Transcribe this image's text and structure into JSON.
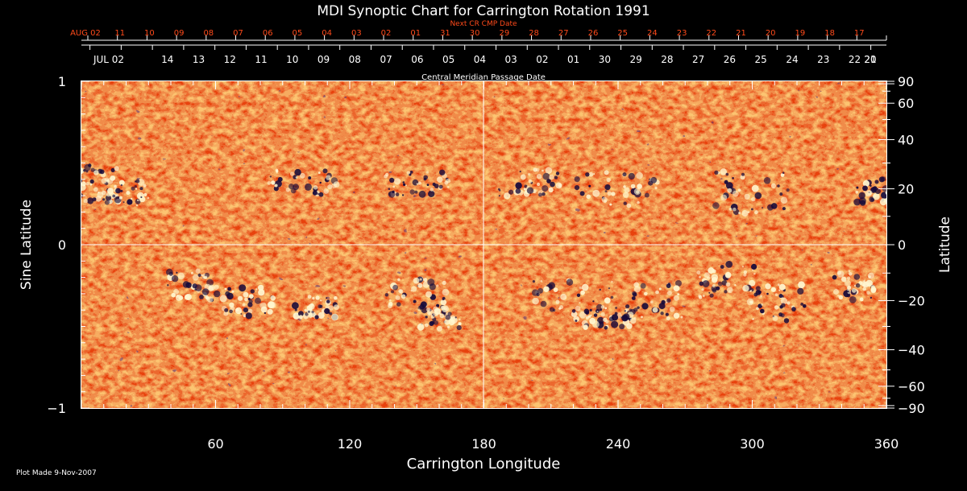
{
  "chart_data": {
    "type": "heatmap",
    "title": "MDI Synoptic Chart for Carrington Rotation 1991",
    "xlabel": "Carrington Longitude",
    "ylabel_left": "Sine Latitude",
    "ylabel_right": "Latitude",
    "xlim": [
      0,
      360
    ],
    "ylim": [
      -1,
      1
    ],
    "x_ticks": [
      "60",
      "120",
      "180",
      "240",
      "300",
      "360"
    ],
    "y_left_ticks": [
      "1",
      "0",
      "−1"
    ],
    "y_right_ticks": [
      "90",
      "60",
      "40",
      "20",
      "0",
      "−20",
      "−40",
      "−60",
      "−90"
    ],
    "next_cr_axis": {
      "label": "Next CR CMP Date",
      "ticks": [
        "AUG 02",
        "11",
        "10",
        "09",
        "08",
        "07",
        "06",
        "05",
        "04",
        "03",
        "02",
        "01",
        "31",
        "30",
        "29",
        "28",
        "27",
        "26",
        "25",
        "24",
        "23",
        "22",
        "21",
        "20",
        "19",
        "18",
        "17"
      ]
    },
    "cmp_axis": {
      "label": "Central Meridian Passage Date",
      "ticks": [
        "JUL 02",
        "14",
        "13",
        "12",
        "11",
        "10",
        "09",
        "08",
        "07",
        "06",
        "05",
        "04",
        "03",
        "02",
        "01",
        "30",
        "29",
        "28",
        "27",
        "26",
        "25",
        "24",
        "23",
        "22",
        "21",
        "20"
      ]
    },
    "colors": {
      "background": "#000000",
      "axis": "#ffffff",
      "map_base": "#e8420f",
      "positive_polarity": "#fff7d0",
      "negative_polarity": "#160a3a",
      "top_axis_text": "#ff4a1a"
    }
  },
  "footer": {
    "plot_made": "Plot Made  9-Nov-2007"
  }
}
